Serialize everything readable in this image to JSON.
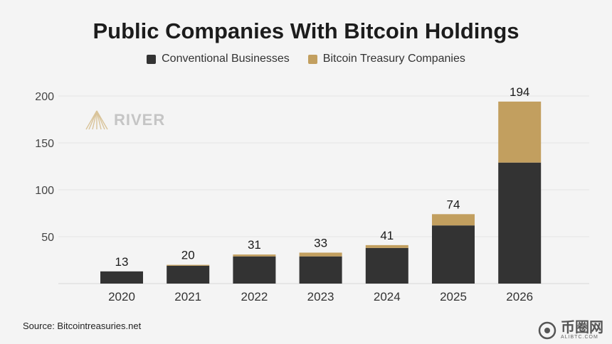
{
  "chart_data": {
    "type": "bar",
    "stacked": true,
    "title": "Public Companies With Bitcoin Holdings",
    "categories": [
      "2020",
      "2021",
      "2022",
      "2023",
      "2024",
      "2025",
      "2026"
    ],
    "series": [
      {
        "name": "Conventional Businesses",
        "color": "#333333",
        "values": [
          13,
          19,
          29,
          29,
          38,
          62,
          129
        ]
      },
      {
        "name": "Bitcoin Treasury Companies",
        "color": "#c29f5f",
        "values": [
          0,
          1,
          2,
          4,
          3,
          12,
          65
        ]
      }
    ],
    "totals": [
      13,
      20,
      31,
      33,
      41,
      74,
      194
    ],
    "yticks": [
      50,
      100,
      150,
      200
    ],
    "ylim": [
      0,
      200
    ],
    "grid": true,
    "legend": "top-center"
  },
  "source": "Source: Bitcointreasuries.net",
  "logo": {
    "text": "RIVER",
    "icon": "river-triangle-icon"
  },
  "watermark": {
    "cn": "币圈网",
    "en": "ALIBTC.COM"
  }
}
